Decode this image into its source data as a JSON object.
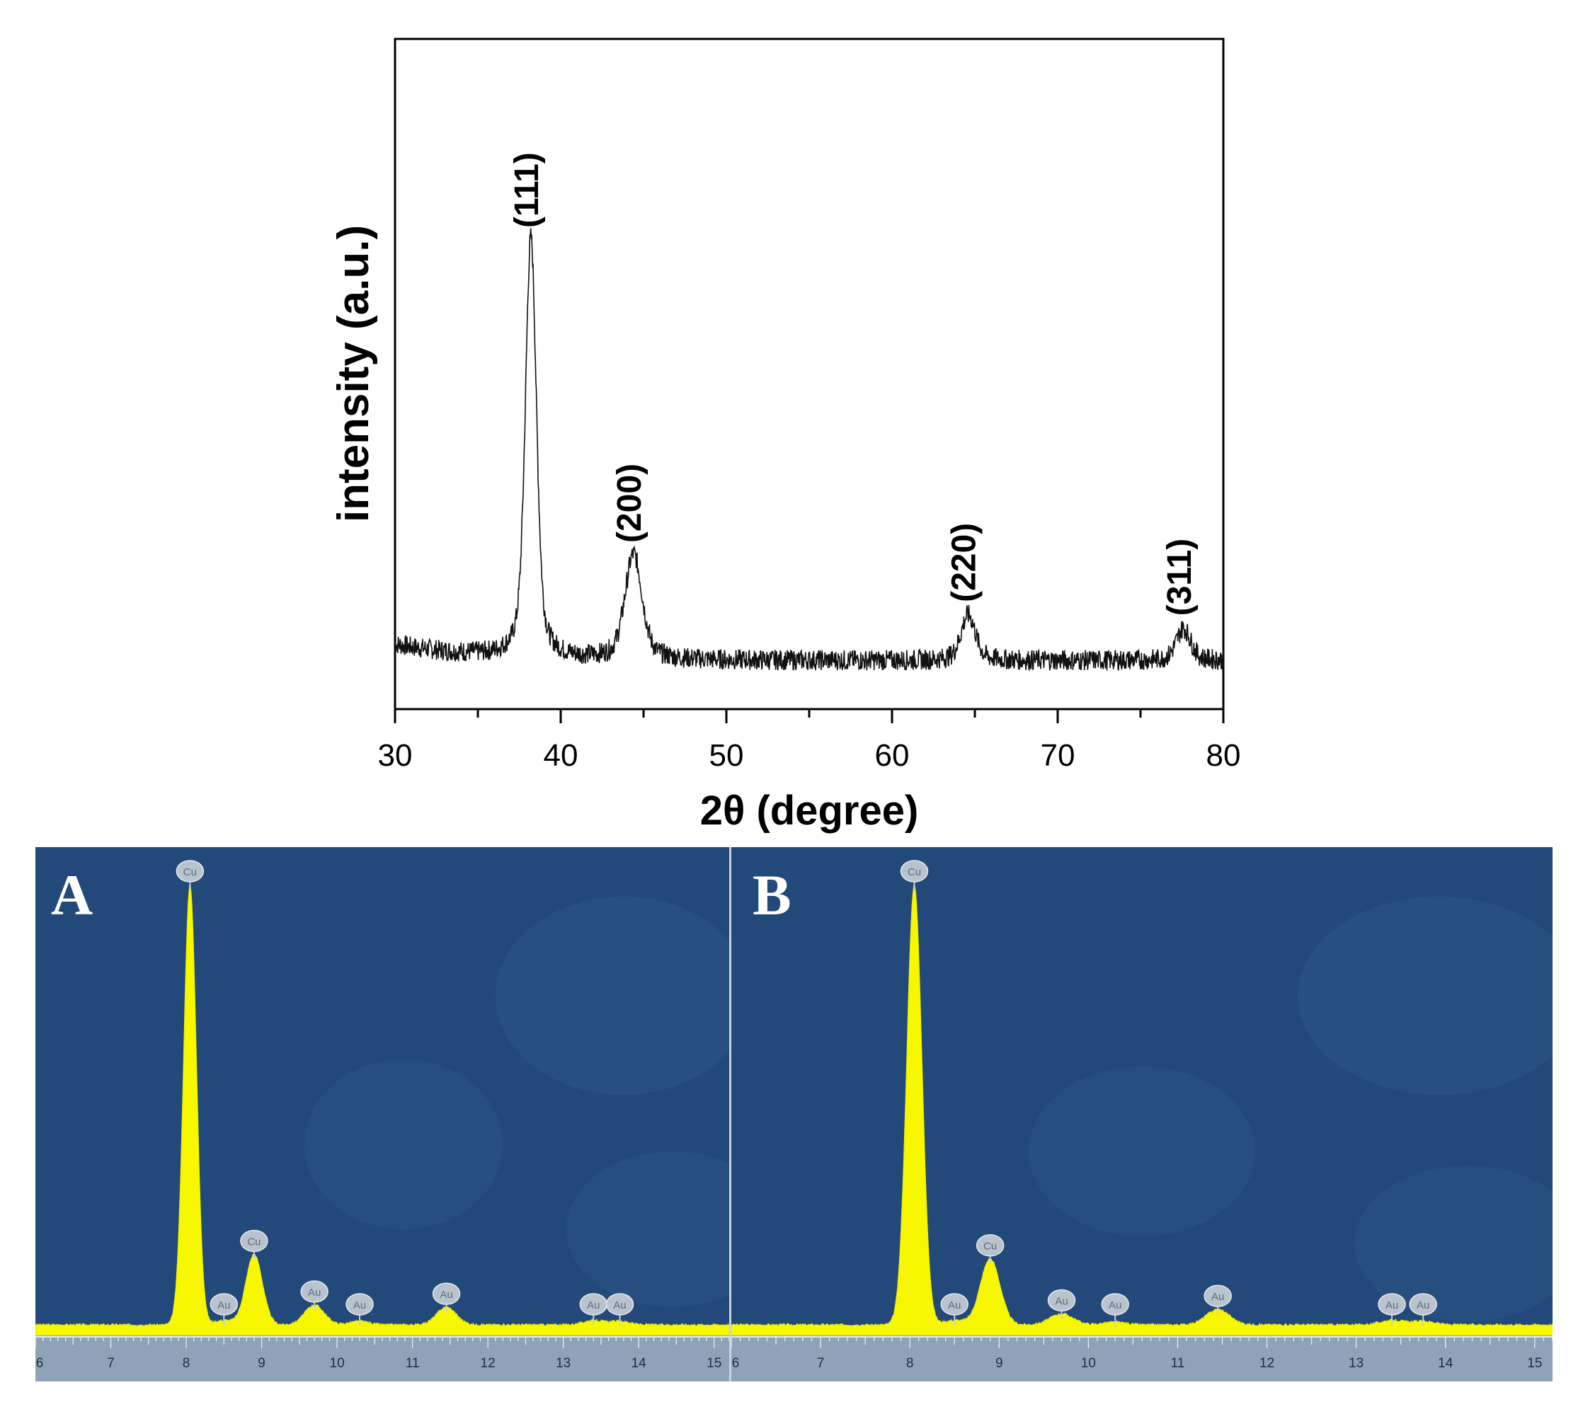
{
  "colors": {
    "axis": "#000000",
    "trace": "#111111",
    "eds_background": "#22497a",
    "eds_spectrum": "#f7f700",
    "eds_ruler": "#8fa3b8",
    "peak_label_bubble": "#b9c3cd"
  },
  "xrd": {
    "chart_data": {
      "type": "line",
      "xlabel": "2θ (degree)",
      "ylabel": "intensity (a.u.)",
      "xlim": [
        30,
        80
      ],
      "ylim": [
        0,
        100
      ],
      "xticks": [
        30,
        40,
        50,
        60,
        70,
        80
      ],
      "xtick_labels": [
        "30",
        "40",
        "50",
        "60",
        "70",
        "80"
      ],
      "y_ticks_shown": false,
      "grid": false,
      "background": 8,
      "peaks": [
        {
          "label": "(111)",
          "x": 38.2,
          "height": 100
        },
        {
          "label": "(200)",
          "x": 44.4,
          "height": 31
        },
        {
          "label": "(220)",
          "x": 64.6,
          "height": 18
        },
        {
          "label": "(311)",
          "x": 77.6,
          "height": 15
        }
      ]
    }
  },
  "eds": [
    {
      "panel_label": "A",
      "chart_data": {
        "type": "area",
        "xlim": [
          6,
          15.2
        ],
        "ylim": [
          0,
          100
        ],
        "xtick_labels": [
          "6",
          "7",
          "8",
          "9",
          "10",
          "11",
          "12",
          "13",
          "14",
          "15"
        ],
        "peaks": [
          {
            "element": "Cu",
            "x": 8.05,
            "height": 100
          },
          {
            "element": "Au",
            "x": 8.5,
            "height": 1
          },
          {
            "element": "Cu",
            "x": 8.9,
            "height": 16
          },
          {
            "element": "Au",
            "x": 9.7,
            "height": 4.5
          },
          {
            "element": "Au",
            "x": 10.3,
            "height": 0.8
          },
          {
            "element": "Au",
            "x": 11.45,
            "height": 4
          },
          {
            "element": "Au",
            "x": 13.4,
            "height": 1
          },
          {
            "element": "Au",
            "x": 13.75,
            "height": 0.8
          }
        ]
      }
    },
    {
      "panel_label": "B",
      "chart_data": {
        "type": "area",
        "xlim": [
          6,
          15.2
        ],
        "ylim": [
          0,
          100
        ],
        "xtick_labels": [
          "6",
          "7",
          "8",
          "9",
          "10",
          "11",
          "12",
          "13",
          "14",
          "15"
        ],
        "peaks": [
          {
            "element": "Cu",
            "x": 8.05,
            "height": 100
          },
          {
            "element": "Au",
            "x": 8.5,
            "height": 1
          },
          {
            "element": "Cu",
            "x": 8.9,
            "height": 15
          },
          {
            "element": "Au",
            "x": 9.7,
            "height": 2.5
          },
          {
            "element": "Au",
            "x": 10.3,
            "height": 0.6
          },
          {
            "element": "Au",
            "x": 11.45,
            "height": 3.5
          },
          {
            "element": "Au",
            "x": 13.4,
            "height": 1
          },
          {
            "element": "Au",
            "x": 13.75,
            "height": 0.8
          }
        ]
      }
    }
  ]
}
